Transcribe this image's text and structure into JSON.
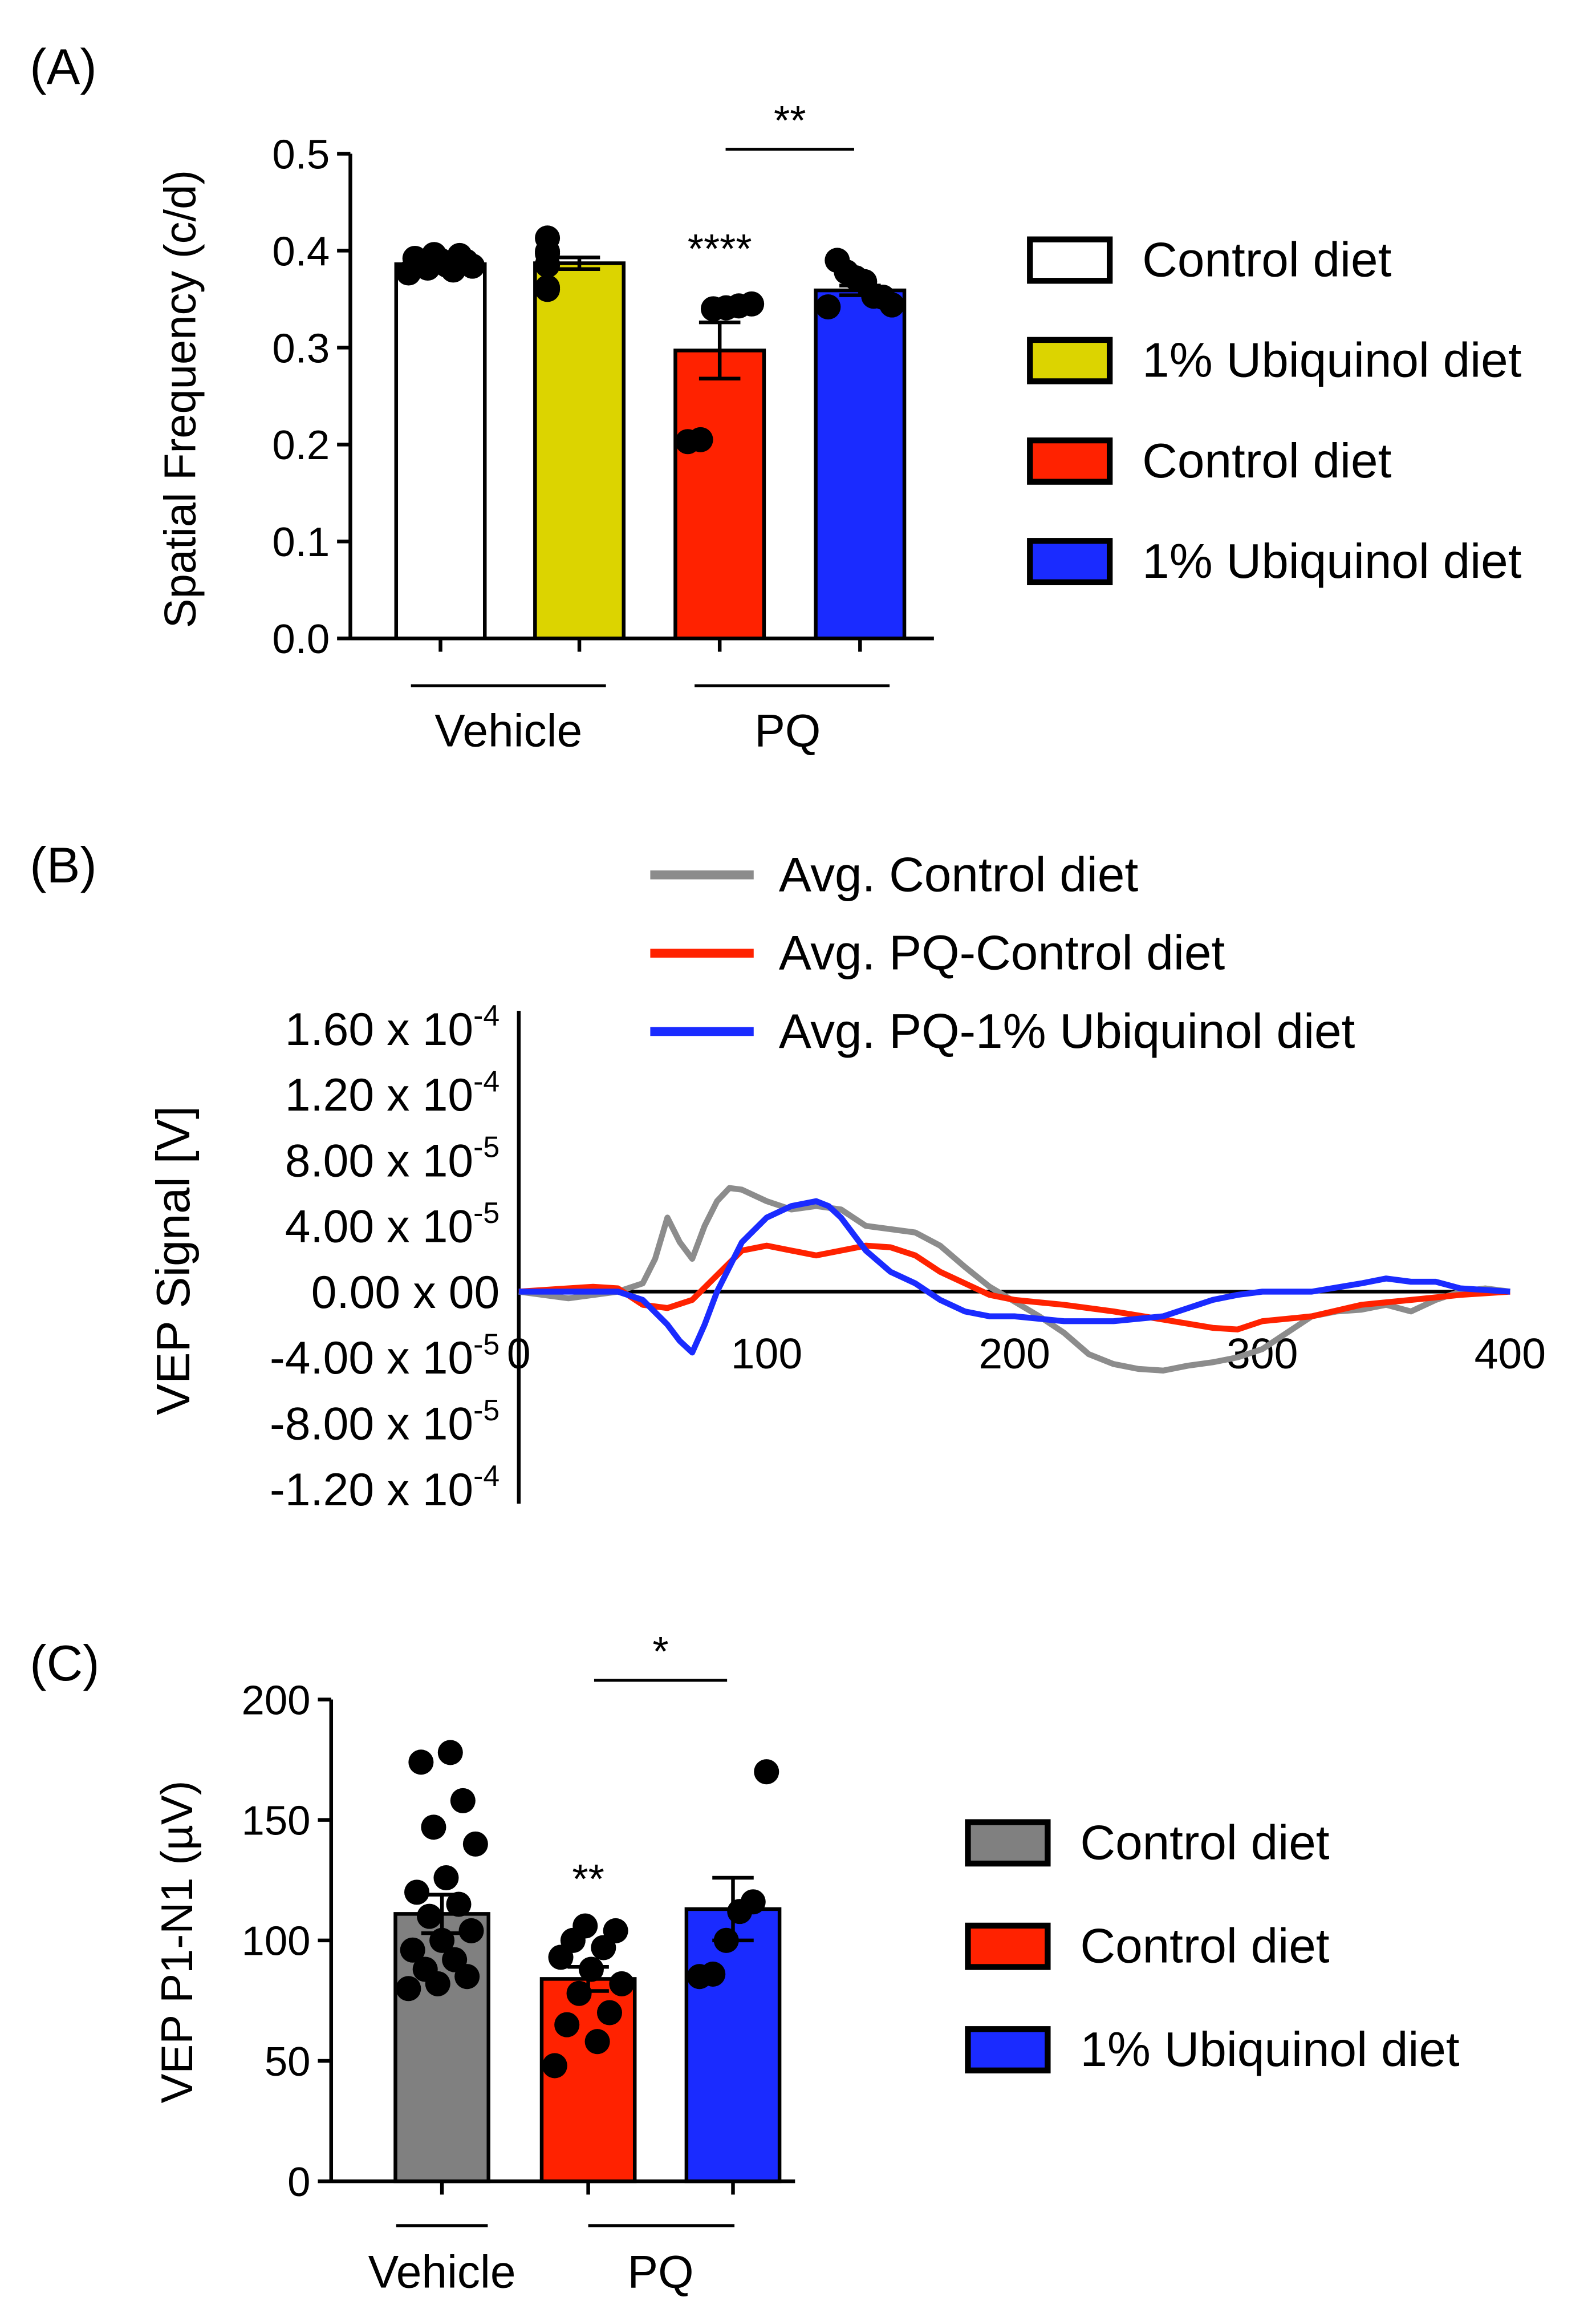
{
  "chart_data": [
    {
      "panel": "(A)",
      "type": "bar",
      "ylabel": "Spatial Frequency (c/d)",
      "ylim": [
        0,
        0.5
      ],
      "yticks": [
        "0.0",
        "0.1",
        "0.2",
        "0.3",
        "0.4",
        "0.5"
      ],
      "group_labels": [
        "Vehicle",
        "PQ"
      ],
      "bars": [
        {
          "legend": "Control diet",
          "group": "Vehicle",
          "mean": 0.386,
          "sem": 0.003,
          "color": "#ffffff",
          "points": [
            0.377,
            0.38,
            0.382,
            0.384,
            0.385,
            0.387,
            0.389,
            0.39,
            0.392,
            0.395,
            0.396
          ]
        },
        {
          "legend": "1% Ubiquinol diet",
          "group": "Vehicle",
          "mean": 0.387,
          "sem": 0.006,
          "color": "#dcd400",
          "points": [
            0.36,
            0.362,
            0.385,
            0.386,
            0.397,
            0.399,
            0.413
          ]
        },
        {
          "legend": "Control diet",
          "group": "PQ",
          "mean": 0.297,
          "sem": 0.029,
          "color": "#ff2200",
          "points": [
            0.203,
            0.205,
            0.34,
            0.341,
            0.343,
            0.345
          ]
        },
        {
          "legend": "1% Ubiquinol diet",
          "group": "PQ",
          "mean": 0.359,
          "sem": 0.005,
          "color": "#1a2bff",
          "points": [
            0.342,
            0.344,
            0.352,
            0.353,
            0.368,
            0.372,
            0.378,
            0.39
          ]
        }
      ],
      "annotations": [
        {
          "text": "****",
          "bar": 2
        },
        {
          "text": "**",
          "from_bar": 2,
          "to_bar": 3
        }
      ]
    },
    {
      "panel": "(B)",
      "type": "line",
      "ylabel": "VEP Signal [V]",
      "xlim": [
        0,
        400
      ],
      "xticks": [
        "0",
        "100",
        "200",
        "300",
        "400"
      ],
      "ylim": [
        -0.00012,
        0.00016
      ],
      "yticks": [
        {
          "value": 0.00016,
          "base": "1.60 x 10",
          "exp": "-4"
        },
        {
          "value": 0.00012,
          "base": "1.20 x 10",
          "exp": "-4"
        },
        {
          "value": 8e-05,
          "base": "8.00 x 10",
          "exp": "-5"
        },
        {
          "value": 4e-05,
          "base": "4.00 x 10",
          "exp": "-5"
        },
        {
          "value": 0,
          "base": "0.00 x 00",
          "exp": ""
        },
        {
          "value": -4e-05,
          "base": "-4.00 x 10",
          "exp": "-5"
        },
        {
          "value": -8e-05,
          "base": "-8.00 x 10",
          "exp": "-5"
        },
        {
          "value": -0.00012,
          "base": "-1.20 x 10",
          "exp": "-4"
        }
      ],
      "series": [
        {
          "name": "Avg. Control diet",
          "color": "#8c8c8c",
          "x": [
            0,
            20,
            40,
            50,
            55,
            60,
            65,
            70,
            75,
            80,
            85,
            90,
            100,
            110,
            120,
            130,
            140,
            150,
            160,
            170,
            180,
            190,
            200,
            210,
            220,
            230,
            240,
            250,
            260,
            270,
            280,
            290,
            300,
            310,
            320,
            330,
            340,
            350,
            360,
            370,
            380,
            390,
            400
          ],
          "y": [
            0,
            -4e-06,
            0,
            5e-06,
            2e-05,
            4.5e-05,
            3e-05,
            2e-05,
            4e-05,
            5.5e-05,
            6.3e-05,
            6.2e-05,
            5.5e-05,
            5e-05,
            5.2e-05,
            5e-05,
            4e-05,
            3.8e-05,
            3.6e-05,
            2.8e-05,
            1.5e-05,
            3e-06,
            -6e-06,
            -1.5e-05,
            -2.5e-05,
            -3.8e-05,
            -4.4e-05,
            -4.7e-05,
            -4.8e-05,
            -4.5e-05,
            -4.3e-05,
            -4e-05,
            -3.5e-05,
            -2.5e-05,
            -1.5e-05,
            -1.2e-05,
            -1.1e-05,
            -8e-06,
            -1.2e-05,
            -5e-06,
            0,
            2e-06,
            0
          ]
        },
        {
          "name": "Avg. PQ-Control diet",
          "color": "#ff2200",
          "x": [
            0,
            20,
            30,
            40,
            50,
            60,
            70,
            80,
            90,
            100,
            110,
            120,
            130,
            140,
            150,
            160,
            170,
            180,
            190,
            200,
            220,
            240,
            260,
            280,
            290,
            300,
            320,
            340,
            360,
            380,
            400
          ],
          "y": [
            0,
            2e-06,
            3e-06,
            2e-06,
            -8e-06,
            -1e-05,
            -5e-06,
            1e-05,
            2.5e-05,
            2.8e-05,
            2.5e-05,
            2.2e-05,
            2.5e-05,
            2.8e-05,
            2.7e-05,
            2.2e-05,
            1.2e-05,
            5e-06,
            -2e-06,
            -5e-06,
            -8e-06,
            -1.2e-05,
            -1.7e-05,
            -2.2e-05,
            -2.3e-05,
            -1.8e-05,
            -1.5e-05,
            -8e-06,
            -5e-06,
            -2e-06,
            0
          ]
        },
        {
          "name": "Avg. PQ-1% Ubiquinol diet",
          "color": "#1a2bff",
          "x": [
            0,
            20,
            40,
            50,
            60,
            65,
            70,
            75,
            80,
            90,
            100,
            110,
            120,
            125,
            130,
            140,
            150,
            160,
            170,
            180,
            190,
            200,
            220,
            240,
            260,
            280,
            290,
            300,
            320,
            340,
            350,
            360,
            370,
            380,
            390,
            400
          ],
          "y": [
            0,
            0,
            0,
            -5e-06,
            -2e-05,
            -3e-05,
            -3.7e-05,
            -2e-05,
            0,
            3e-05,
            4.5e-05,
            5.2e-05,
            5.5e-05,
            5.2e-05,
            4.5e-05,
            2.5e-05,
            1.2e-05,
            5e-06,
            -5e-06,
            -1.2e-05,
            -1.5e-05,
            -1.5e-05,
            -1.8e-05,
            -1.8e-05,
            -1.5e-05,
            -5e-06,
            -2e-06,
            0,
            0,
            5e-06,
            8e-06,
            6e-06,
            6e-06,
            2e-06,
            1e-06,
            0
          ]
        }
      ]
    },
    {
      "panel": "(C)",
      "type": "bar",
      "ylabel": "VEP P1-N1 (µV)",
      "ylim": [
        0,
        200
      ],
      "yticks": [
        "0",
        "50",
        "100",
        "150",
        "200"
      ],
      "group_labels": [
        "Vehicle",
        "PQ"
      ],
      "bars": [
        {
          "legend": "Control diet",
          "group": "Vehicle",
          "mean": 111,
          "sem": 8,
          "color": "#808080",
          "points": [
            80,
            82,
            85,
            88,
            92,
            96,
            100,
            104,
            110,
            115,
            120,
            126,
            140,
            147,
            158,
            174,
            178
          ]
        },
        {
          "legend": "Control diet",
          "group": "PQ",
          "mean": 84,
          "sem": 5,
          "color": "#ff2200",
          "points": [
            48,
            58,
            65,
            70,
            78,
            82,
            88,
            93,
            97,
            100,
            104,
            106
          ]
        },
        {
          "legend": "1% Ubiquinol diet",
          "group": "PQ",
          "mean": 113,
          "sem": 13,
          "color": "#1a2bff",
          "points": [
            85,
            86,
            100,
            112,
            116,
            170
          ]
        }
      ],
      "annotations": [
        {
          "text": "**",
          "bar": 1
        },
        {
          "text": "*",
          "from_bar": 1,
          "to_bar": 2
        }
      ]
    }
  ]
}
